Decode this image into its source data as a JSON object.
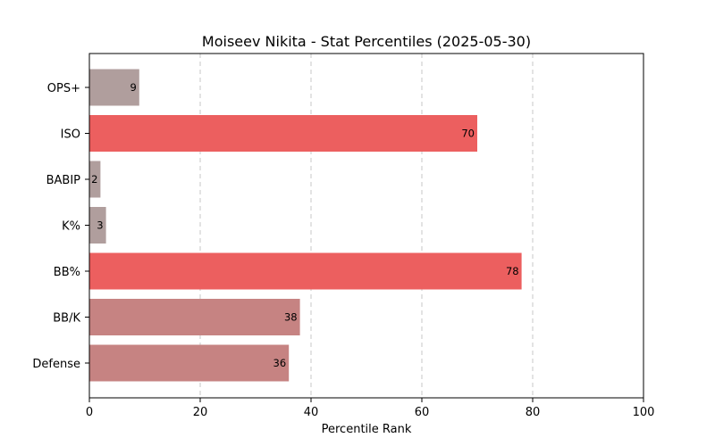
{
  "chart_data": {
    "type": "bar",
    "orientation": "horizontal",
    "title": "Moiseev Nikita - Stat Percentiles (2025-05-30)",
    "xlabel": "Percentile Rank",
    "ylabel": "",
    "xlim": [
      0,
      100
    ],
    "xticks": [
      0,
      20,
      40,
      60,
      80,
      100
    ],
    "grid": "vertical dashed",
    "categories": [
      "OPS+",
      "ISO",
      "BABIP",
      "K%",
      "BB%",
      "BB/K",
      "Defense"
    ],
    "values": [
      9,
      70,
      2,
      3,
      78,
      38,
      36
    ],
    "colors": [
      "#b09e9d",
      "#ec5f5f",
      "#b09e9d",
      "#b09e9d",
      "#ec5f5f",
      "#c68382",
      "#c68382"
    ]
  }
}
